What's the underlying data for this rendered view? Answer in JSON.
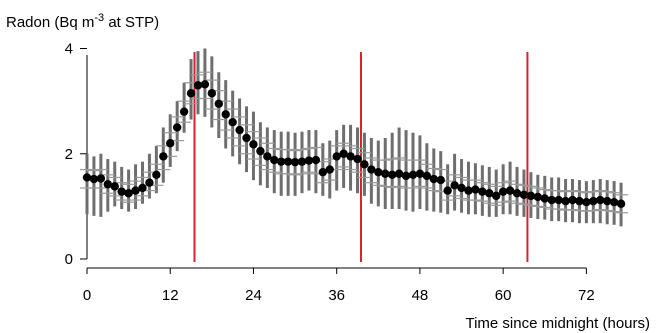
{
  "chart_data": {
    "type": "scatter",
    "ylabel": "Radon (Bq m",
    "ylabel_sup": "-3",
    "ylabel_suffix": " at STP)",
    "xlabel": "Time since midnight (hours)",
    "xlim": [
      0,
      78
    ],
    "ylim": [
      0,
      4.2
    ],
    "xticks": [
      0,
      12,
      24,
      36,
      48,
      60,
      72
    ],
    "yticks": [
      0,
      2,
      4
    ],
    "vlines": [
      15.5,
      39.5,
      63.5
    ],
    "colors": {
      "points": "#000000",
      "errorbars": "#6e6e6e",
      "quartiles": "#9a9a9a",
      "vlines": "#d8202f"
    },
    "series": [
      {
        "x": [
          0,
          1,
          2,
          3,
          4,
          5,
          6,
          7,
          8,
          9,
          10,
          11,
          12,
          13,
          14,
          15,
          16,
          17,
          18,
          19,
          20,
          21,
          22,
          23,
          24,
          25,
          26,
          27,
          28,
          29,
          30,
          31,
          32,
          33,
          34,
          35,
          36,
          37,
          38,
          39,
          40,
          41,
          42,
          43,
          44,
          45,
          46,
          47,
          48,
          49,
          50,
          51,
          52,
          53,
          54,
          55,
          56,
          57,
          58,
          59,
          60,
          61,
          62,
          63,
          64,
          65,
          66,
          67,
          68,
          69,
          70,
          71,
          72,
          73,
          74,
          75,
          76,
          77
        ],
        "y": [
          1.55,
          1.52,
          1.53,
          1.42,
          1.38,
          1.28,
          1.25,
          1.3,
          1.35,
          1.45,
          1.6,
          1.95,
          2.2,
          2.5,
          2.8,
          3.15,
          3.3,
          3.32,
          3.15,
          2.95,
          2.75,
          2.6,
          2.45,
          2.3,
          2.18,
          2.05,
          1.95,
          1.88,
          1.85,
          1.85,
          1.84,
          1.85,
          1.87,
          1.88,
          1.65,
          1.7,
          1.95,
          2.0,
          1.95,
          1.9,
          1.8,
          1.7,
          1.65,
          1.62,
          1.6,
          1.62,
          1.58,
          1.6,
          1.62,
          1.58,
          1.52,
          1.5,
          1.3,
          1.4,
          1.35,
          1.3,
          1.32,
          1.28,
          1.25,
          1.2,
          1.28,
          1.3,
          1.25,
          1.22,
          1.2,
          1.18,
          1.15,
          1.12,
          1.12,
          1.1,
          1.12,
          1.1,
          1.08,
          1.1,
          1.12,
          1.1,
          1.08,
          1.05
        ],
        "y_low": [
          0.85,
          0.82,
          0.8,
          0.9,
          1.0,
          0.95,
          0.9,
          0.95,
          1.05,
          1.15,
          1.25,
          1.45,
          1.75,
          2.05,
          2.4,
          2.65,
          2.75,
          2.7,
          2.5,
          2.3,
          2.1,
          1.95,
          1.8,
          1.65,
          1.5,
          1.4,
          1.35,
          1.25,
          1.2,
          1.2,
          1.2,
          1.25,
          1.3,
          1.25,
          1.2,
          1.15,
          1.3,
          1.35,
          1.3,
          1.25,
          1.2,
          1.05,
          1.0,
          0.95,
          0.95,
          0.95,
          0.92,
          0.9,
          0.95,
          0.92,
          0.9,
          0.88,
          0.85,
          0.92,
          0.88,
          0.85,
          0.85,
          0.82,
          0.8,
          0.8,
          0.85,
          0.85,
          0.82,
          0.8,
          0.78,
          0.76,
          0.75,
          0.72,
          0.72,
          0.7,
          0.7,
          0.68,
          0.68,
          0.68,
          0.68,
          0.66,
          0.65,
          0.62
        ],
        "y_high": [
          2.0,
          1.95,
          2.0,
          1.9,
          1.85,
          1.75,
          1.7,
          1.8,
          1.85,
          2.0,
          2.15,
          2.5,
          2.75,
          3.0,
          3.35,
          3.8,
          3.95,
          4.0,
          3.85,
          3.55,
          3.4,
          3.2,
          3.05,
          2.9,
          2.8,
          2.6,
          2.5,
          2.45,
          2.42,
          2.42,
          2.4,
          2.42,
          2.45,
          2.45,
          2.2,
          2.25,
          2.45,
          2.55,
          2.55,
          2.5,
          2.4,
          2.3,
          2.25,
          2.3,
          2.4,
          2.5,
          2.45,
          2.4,
          2.35,
          2.2,
          2.1,
          2.05,
          1.8,
          2.0,
          1.9,
          1.85,
          1.82,
          1.78,
          1.75,
          1.7,
          1.8,
          1.85,
          1.75,
          1.7,
          1.65,
          1.6,
          1.58,
          1.55,
          1.55,
          1.52,
          1.52,
          1.5,
          1.48,
          1.5,
          1.52,
          1.5,
          1.48,
          1.45
        ],
        "q1": [
          1.35,
          1.35,
          1.35,
          1.25,
          1.2,
          1.12,
          1.08,
          1.12,
          1.2,
          1.3,
          1.4,
          1.7,
          1.95,
          2.25,
          2.6,
          2.95,
          3.05,
          3.05,
          2.85,
          2.65,
          2.45,
          2.3,
          2.15,
          2.0,
          1.9,
          1.78,
          1.7,
          1.65,
          1.62,
          1.62,
          1.6,
          1.62,
          1.65,
          1.62,
          1.45,
          1.5,
          1.7,
          1.75,
          1.7,
          1.65,
          1.55,
          1.45,
          1.4,
          1.38,
          1.36,
          1.38,
          1.35,
          1.35,
          1.38,
          1.35,
          1.3,
          1.28,
          1.12,
          1.2,
          1.15,
          1.12,
          1.12,
          1.1,
          1.06,
          1.02,
          1.08,
          1.1,
          1.06,
          1.04,
          1.02,
          1.0,
          0.98,
          0.95,
          0.95,
          0.93,
          0.94,
          0.92,
          0.91,
          0.92,
          0.94,
          0.92,
          0.9,
          0.88
        ],
        "q3": [
          1.7,
          1.68,
          1.7,
          1.6,
          1.55,
          1.45,
          1.42,
          1.48,
          1.55,
          1.65,
          1.8,
          2.15,
          2.4,
          2.7,
          3.0,
          3.35,
          3.5,
          3.55,
          3.4,
          3.2,
          3.0,
          2.85,
          2.7,
          2.55,
          2.42,
          2.3,
          2.2,
          2.1,
          2.08,
          2.08,
          2.06,
          2.08,
          2.1,
          2.12,
          1.85,
          1.9,
          2.15,
          2.2,
          2.15,
          2.1,
          2.02,
          1.92,
          1.88,
          1.88,
          1.9,
          1.92,
          1.88,
          1.88,
          1.88,
          1.8,
          1.72,
          1.7,
          1.48,
          1.6,
          1.55,
          1.5,
          1.5,
          1.45,
          1.42,
          1.38,
          1.45,
          1.48,
          1.42,
          1.4,
          1.38,
          1.35,
          1.32,
          1.3,
          1.3,
          1.28,
          1.3,
          1.28,
          1.26,
          1.28,
          1.3,
          1.28,
          1.26,
          1.22
        ]
      }
    ]
  }
}
